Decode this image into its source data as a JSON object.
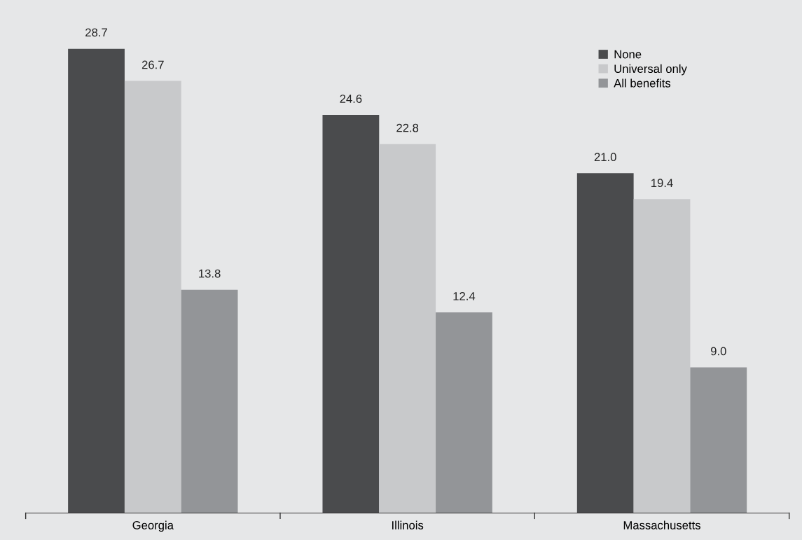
{
  "chart_data": {
    "type": "bar",
    "categories": [
      "Georgia",
      "Illinois",
      "Massachusetts"
    ],
    "series": [
      {
        "name": "None",
        "color": "#4a4b4d",
        "values": [
          28.7,
          24.6,
          21.0
        ],
        "value_labels": [
          "28.7",
          "24.6",
          "21.0"
        ]
      },
      {
        "name": "Universal only",
        "color": "#c8c9cb",
        "values": [
          26.7,
          22.8,
          19.4
        ],
        "value_labels": [
          "26.7",
          "22.8",
          "19.4"
        ]
      },
      {
        "name": "All benefits",
        "color": "#939598",
        "values": [
          13.8,
          12.4,
          9.0
        ],
        "value_labels": [
          "13.8",
          "12.4",
          "9.0"
        ]
      }
    ],
    "legend": "top right",
    "grid": false,
    "tick_labels": "x"
  }
}
